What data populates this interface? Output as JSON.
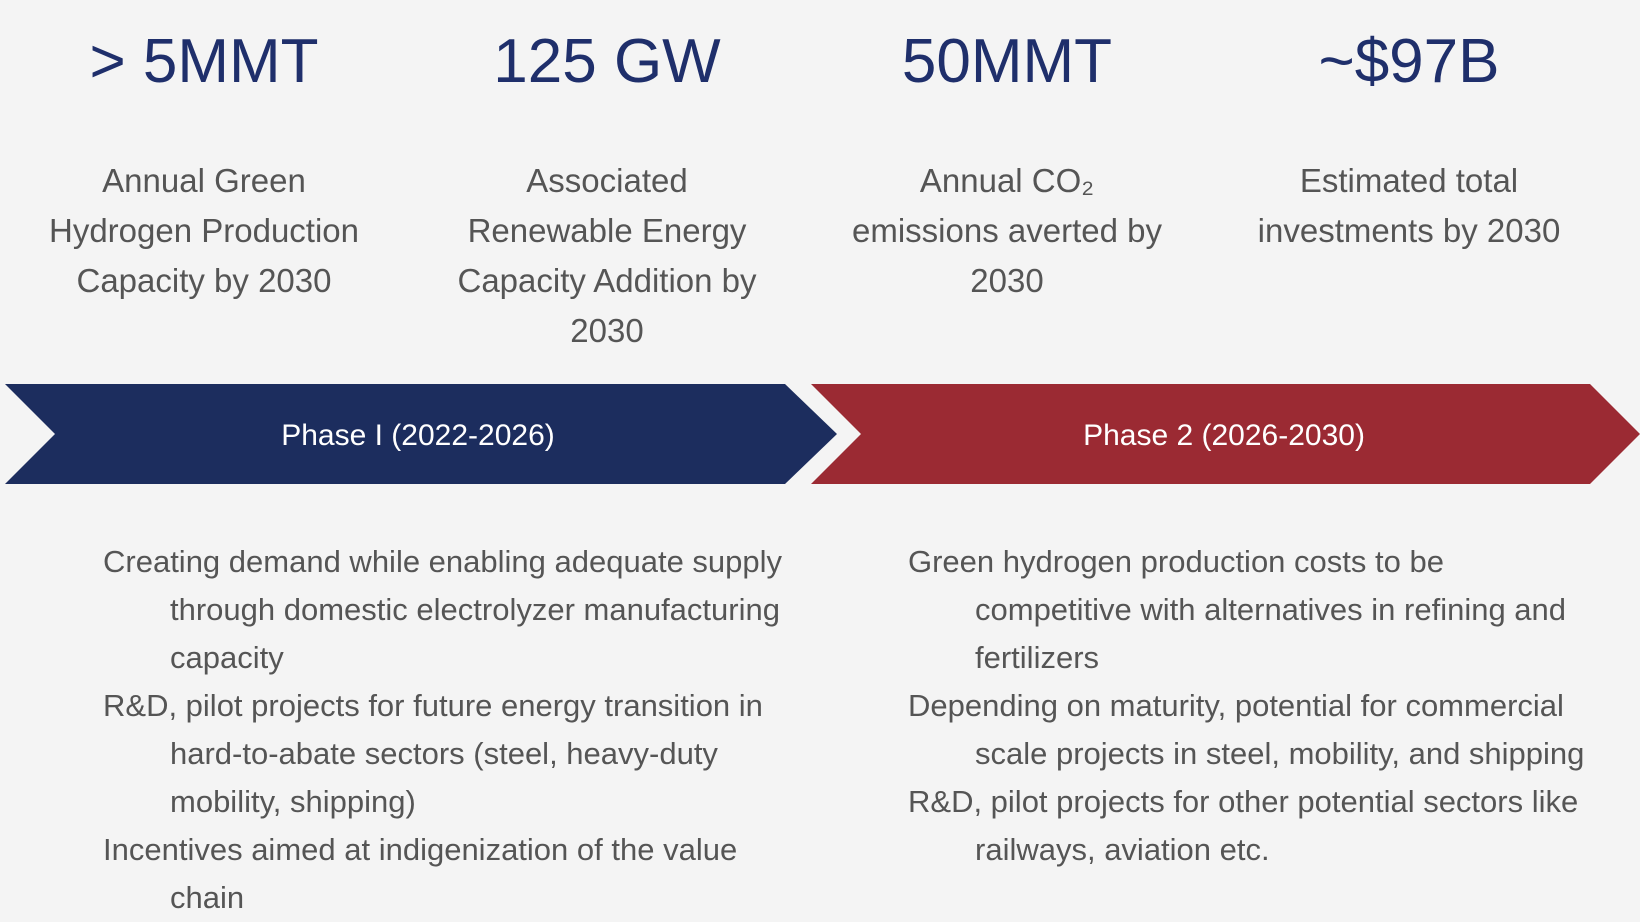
{
  "stats": [
    {
      "value": "> 5MMT",
      "label": "Annual Green Hydrogen Production Capacity by 2030"
    },
    {
      "value": "125 GW",
      "label": "Associated Renewable Energy Capacity Addition by 2030"
    },
    {
      "value": "50MMT",
      "label": "Annual CO₂ emissions averted by 2030"
    },
    {
      "value": "~$97B",
      "label": "Estimated total investments by 2030"
    }
  ],
  "phases": [
    {
      "label": "Phase I (2022-2026)",
      "items": [
        "Creating demand while enabling adequate supply through domestic electrolyzer manufacturing capacity",
        "R&D, pilot projects for future energy transition in hard-to-abate sectors (steel, heavy-duty mobility, shipping)",
        "Incentives aimed at indigenization of the value chain"
      ]
    },
    {
      "label": "Phase 2 (2026-2030)",
      "items": [
        "Green hydrogen production costs to be competitive with alternatives in refining and fertilizers",
        "Depending on maturity, potential for commercial scale projects in steel, mobility, and shipping",
        "R&D, pilot projects for other potential sectors like railways, aviation etc."
      ]
    }
  ]
}
